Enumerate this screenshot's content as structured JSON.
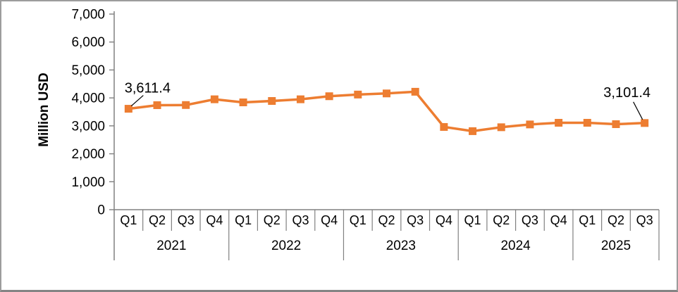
{
  "chart_data": {
    "type": "line",
    "title": "",
    "xlabel": "",
    "ylabel": "Million USD",
    "ylim": [
      0,
      7000
    ],
    "grid": false,
    "legend_position": "none",
    "ytick_labels": [
      "0",
      "1,000",
      "2,000",
      "3,000",
      "4,000",
      "5,000",
      "6,000",
      "7,000"
    ],
    "categories": [
      "Q1",
      "Q2",
      "Q3",
      "Q4",
      "Q1",
      "Q2",
      "Q3",
      "Q4",
      "Q1",
      "Q2",
      "Q3",
      "Q4",
      "Q1",
      "Q2",
      "Q3",
      "Q4",
      "Q1",
      "Q2",
      "Q3"
    ],
    "year_groups": [
      {
        "label": "2021",
        "count": 4
      },
      {
        "label": "2022",
        "count": 4
      },
      {
        "label": "2023",
        "count": 4
      },
      {
        "label": "2024",
        "count": 4
      },
      {
        "label": "2025",
        "count": 3
      }
    ],
    "series": [
      {
        "values": [
          3611.4,
          3740,
          3745,
          3950,
          3840,
          3890,
          3950,
          4060,
          4120,
          4160,
          4220,
          2960,
          2810,
          2950,
          3050,
          3110,
          3110,
          3060,
          3101.4
        ]
      }
    ],
    "annotations": [
      {
        "index": 0,
        "text": "3,611.4"
      },
      {
        "index": 18,
        "text": "3,101.4"
      }
    ],
    "colors": {
      "line": "#ED7D31",
      "marker": "#ED7D31",
      "axis": "#808080",
      "text": "#000000",
      "leader_line": "#000000"
    }
  }
}
